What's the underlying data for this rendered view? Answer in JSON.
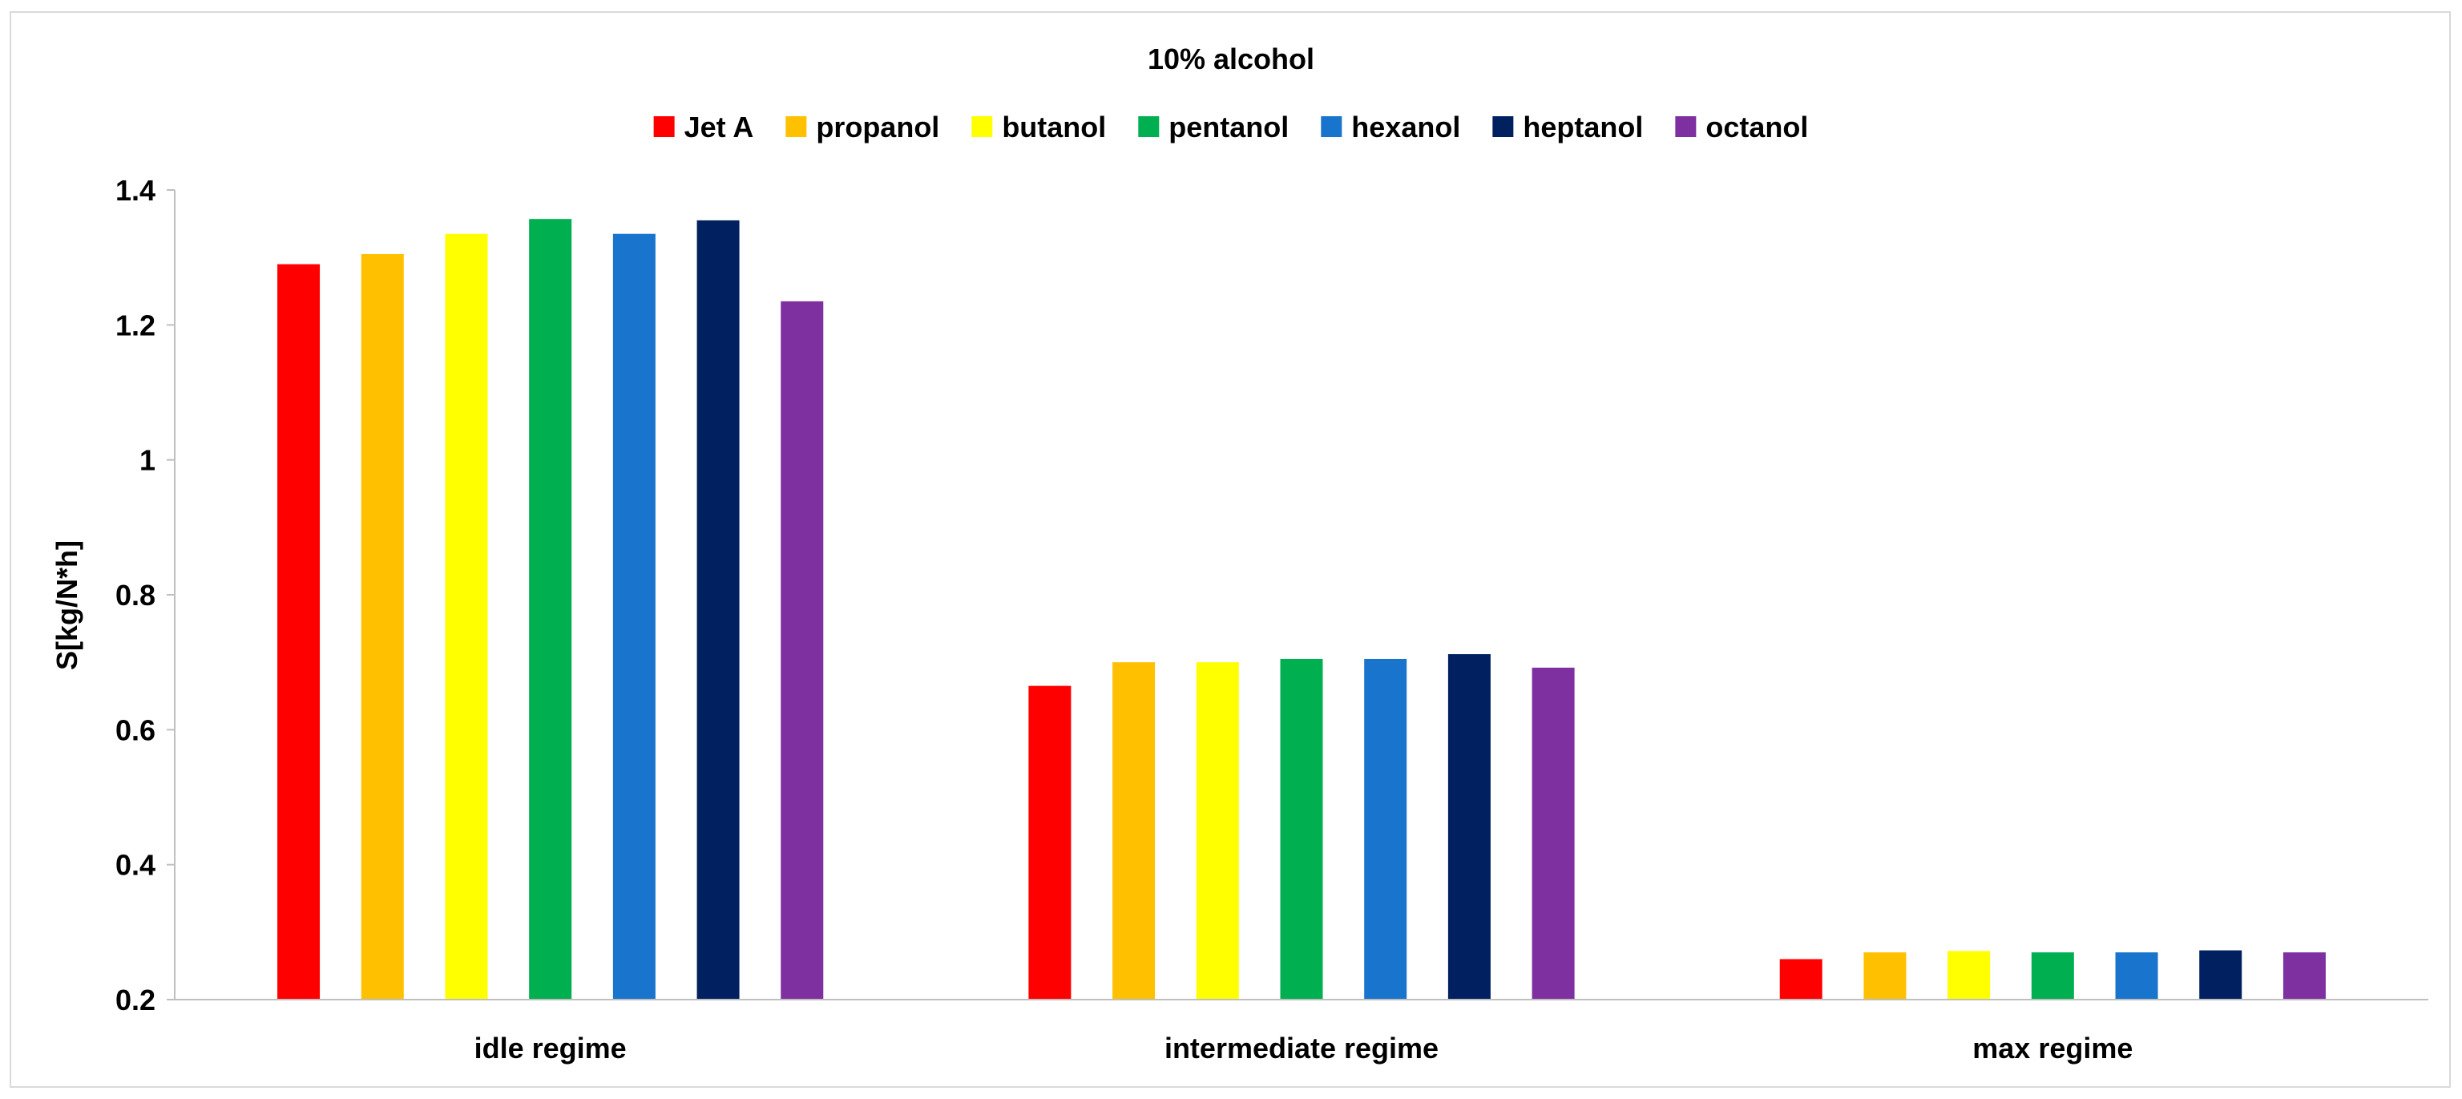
{
  "chart_data": {
    "type": "bar",
    "title": "10% alcohol",
    "xlabel": "",
    "ylabel": "S[kg/N*h]",
    "ylim": [
      0.2,
      1.4
    ],
    "yticks": [
      "0.2",
      "0.4",
      "0.6",
      "0.8",
      "1",
      "1.2",
      "1.4"
    ],
    "categories": [
      "idle regime",
      "intermediate regime",
      "max regime"
    ],
    "legend_position": "top",
    "grid": false,
    "series": [
      {
        "name": "Jet A",
        "color": "#ff0000",
        "values": [
          1.29,
          0.665,
          0.26
        ]
      },
      {
        "name": "propanol",
        "color": "#ffc000",
        "values": [
          1.305,
          0.7,
          0.27
        ]
      },
      {
        "name": "butanol",
        "color": "#ffff00",
        "values": [
          1.335,
          0.7,
          0.272
        ]
      },
      {
        "name": "pentanol",
        "color": "#00b050",
        "values": [
          1.357,
          0.705,
          0.27
        ]
      },
      {
        "name": "hexanol",
        "color": "#1874cd",
        "values": [
          1.335,
          0.705,
          0.27
        ]
      },
      {
        "name": "heptanol",
        "color": "#002060",
        "values": [
          1.355,
          0.712,
          0.273
        ]
      },
      {
        "name": "octanol",
        "color": "#7f30a0",
        "values": [
          1.235,
          0.692,
          0.27
        ]
      }
    ]
  }
}
